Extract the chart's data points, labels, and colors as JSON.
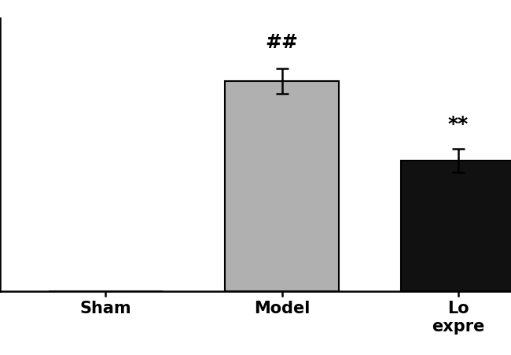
{
  "x_labels": [
    "Sham",
    "Model",
    "Lo\nexpre"
  ],
  "values": [
    0,
    500,
    310
  ],
  "errors": [
    0,
    30,
    28
  ],
  "bar_colors": [
    "#ffffff",
    "#b0b0b0",
    "#111111"
  ],
  "bar_edgecolors": [
    "#000000",
    "#000000",
    "#000000"
  ],
  "annotations": [
    "",
    "##",
    "**"
  ],
  "ylim": [
    0,
    650
  ],
  "yticks": [
    0,
    200,
    400,
    600
  ],
  "bar_width": 0.65,
  "background_color": "#ffffff",
  "tick_fontsize": 15,
  "label_fontsize": 15,
  "annot_fontsize": 18,
  "figwidth": 6.5,
  "figheight": 4.51,
  "dpi": 100
}
